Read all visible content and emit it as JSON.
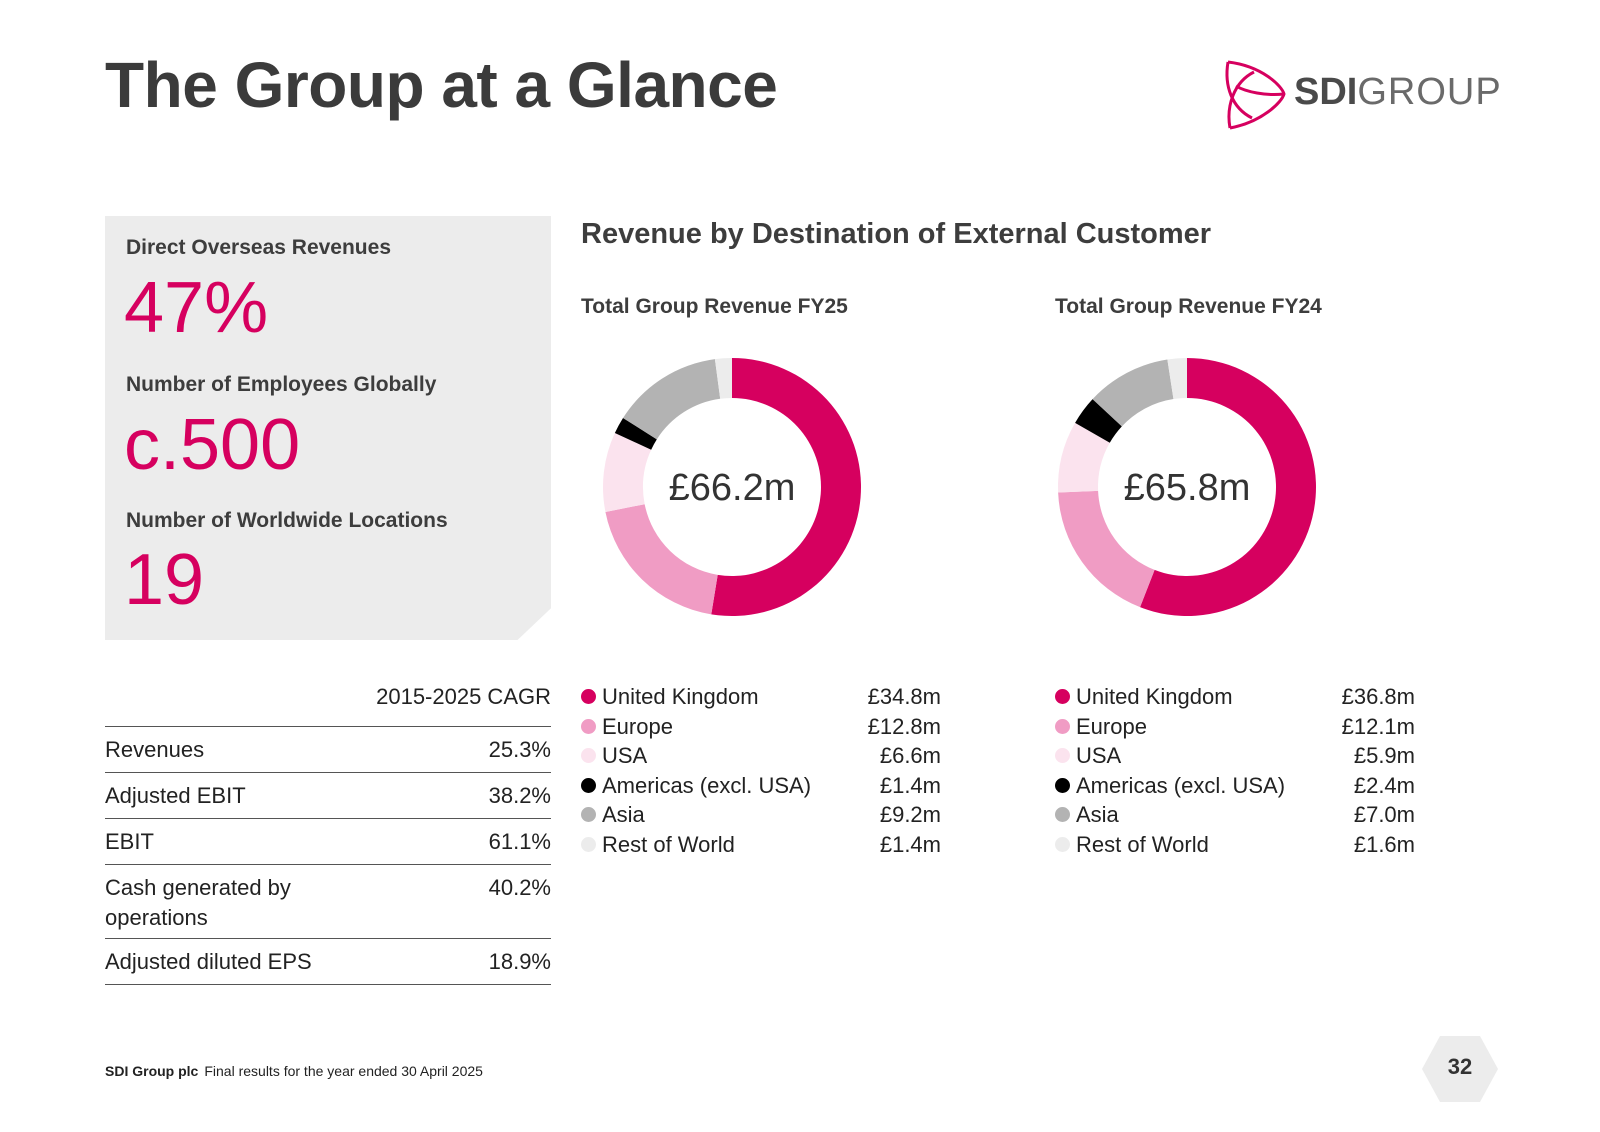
{
  "title": "The Group at a Glance",
  "logo": {
    "bold": "SDI",
    "light": "GROUP"
  },
  "stats": [
    {
      "label": "Direct Overseas Revenues",
      "value": "47%"
    },
    {
      "label": "Number of Employees Globally",
      "value": "c.500"
    },
    {
      "label": "Number of Worldwide Locations",
      "value": "19"
    }
  ],
  "cagr": {
    "header": "2015-2025 CAGR",
    "rows": [
      {
        "label": "Revenues",
        "value": "25.3%"
      },
      {
        "label": "Adjusted EBIT",
        "value": "38.2%"
      },
      {
        "label": "EBIT",
        "value": "61.1%"
      },
      {
        "label": "Cash generated by operations",
        "value": "40.2%"
      },
      {
        "label": "Adjusted diluted EPS",
        "value": "18.9%"
      }
    ]
  },
  "section_title": "Revenue by Destination of External Customer",
  "colors": {
    "brand": "#d6005f",
    "series": [
      "#d6005f",
      "#f09cc4",
      "#fbe3ee",
      "#000000",
      "#b3b3b3",
      "#ececec"
    ],
    "panel": "#ececec"
  },
  "chart_data": [
    {
      "type": "pie",
      "title": "Total Group Revenue FY25",
      "center_label": "£66.2m",
      "categories": [
        "United Kingdom",
        "Europe",
        "USA",
        "Americas (excl. USA)",
        "Asia",
        "Rest of World"
      ],
      "values": [
        34.8,
        12.8,
        6.6,
        1.4,
        9.2,
        1.4
      ],
      "value_labels": [
        "£34.8m",
        "£12.8m",
        "£6.6m",
        "£1.4m",
        "£9.2m",
        "£1.4m"
      ],
      "unit": "£m"
    },
    {
      "type": "pie",
      "title": "Total Group Revenue FY24",
      "center_label": "£65.8m",
      "categories": [
        "United Kingdom",
        "Europe",
        "USA",
        "Americas (excl. USA)",
        "Asia",
        "Rest of World"
      ],
      "values": [
        36.8,
        12.1,
        5.9,
        2.4,
        7.0,
        1.6
      ],
      "value_labels": [
        "£36.8m",
        "£12.1m",
        "£5.9m",
        "£2.4m",
        "£7.0m",
        "£1.6m"
      ],
      "unit": "£m"
    }
  ],
  "footer": {
    "company": "SDI Group plc",
    "text": "Final results for the year ended 30 April 2025"
  },
  "page_number": "32"
}
